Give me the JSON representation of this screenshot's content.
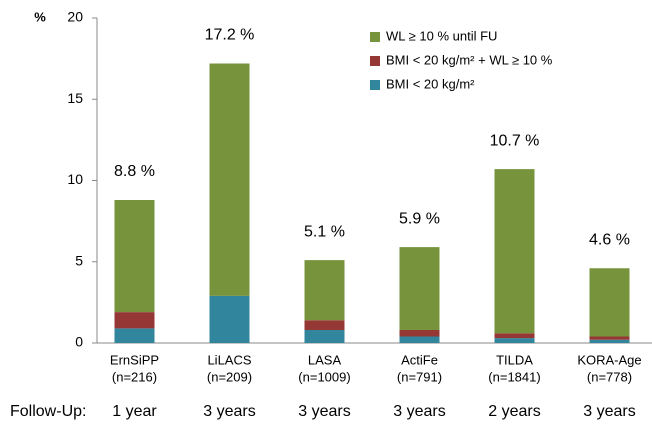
{
  "chart_data": {
    "type": "stacked_bar",
    "y_unit_label": "%",
    "categories": [
      "ErnSiPP",
      "LiLACS",
      "LASA",
      "ActiFe",
      "TILDA",
      "KORA-Age"
    ],
    "sample_sizes": [
      "(n=216)",
      "(n=209)",
      "(n=1009)",
      "(n=791)",
      "(n=1841)",
      "(n=778)"
    ],
    "follow_up_label": "Follow-Up:",
    "follow_up": [
      "1 year",
      "3 years",
      "3 years",
      "3 years",
      "2 years",
      "3 years"
    ],
    "series": [
      {
        "name": "BMI < 20 kg/m²",
        "color": "#31859c",
        "values": [
          0.9,
          2.9,
          0.8,
          0.4,
          0.3,
          0.2
        ]
      },
      {
        "name": "BMI < 20 kg/m² + WL ≥ 10 %",
        "color": "#953735",
        "values": [
          1.0,
          0,
          0.6,
          0.4,
          0.3,
          0.2
        ]
      },
      {
        "name": "WL ≥ 10 % until FU",
        "color": "#77933c",
        "values": [
          6.9,
          14.3,
          3.7,
          5.1,
          10.1,
          4.2
        ]
      }
    ],
    "totals": [
      8.8,
      17.2,
      5.1,
      5.9,
      10.7,
      4.6
    ],
    "total_labels": [
      "8.8 %",
      "17.2 %",
      "5.1 %",
      "5.9 %",
      "10.7 %",
      "4.6 %"
    ],
    "ylim": [
      0,
      20
    ],
    "yticks": [
      0,
      5,
      10,
      15,
      20
    ],
    "grid": false
  }
}
